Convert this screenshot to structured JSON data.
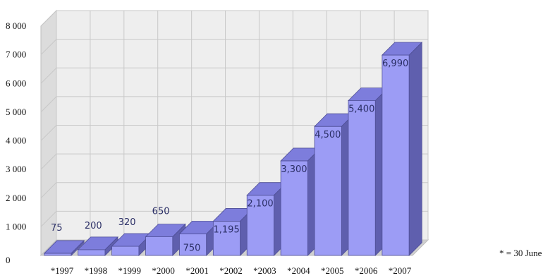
{
  "chart_data": {
    "type": "bar",
    "categories": [
      "*1997",
      "*1998",
      "*1999",
      "*2000",
      "*2001",
      "*2002",
      "*2003",
      "*2004",
      "*2005",
      "*2006",
      "*2007"
    ],
    "values": [
      75,
      200,
      320,
      650,
      750,
      1195,
      2100,
      3300,
      4500,
      5400,
      6990
    ],
    "data_labels": [
      "75",
      "200",
      "320",
      "650",
      "750",
      "1,195",
      "2,100",
      "3,300",
      "4,500",
      "5,400",
      "6,990"
    ],
    "title": "",
    "xlabel": "",
    "ylabel": "",
    "ylim": [
      0,
      8000
    ],
    "yticks": [
      0,
      1000,
      2000,
      3000,
      4000,
      5000,
      6000,
      7000,
      8000
    ],
    "ytick_labels": [
      "0",
      "1 000",
      "2 000",
      "3 000",
      "4 000",
      "5 000",
      "6 000",
      "7 000",
      "8 000"
    ],
    "grid": true,
    "style": "3d",
    "colors": {
      "bar_front": "#9c9cf5",
      "bar_side": "#5f5fae",
      "bar_top": "#7d7ddc",
      "back_wall": "#eeeeee",
      "side_wall": "#dcdcdc",
      "floor": "#d0d0d0",
      "gridline": "#c8c8c8"
    }
  },
  "footnote": "* = 30 June"
}
